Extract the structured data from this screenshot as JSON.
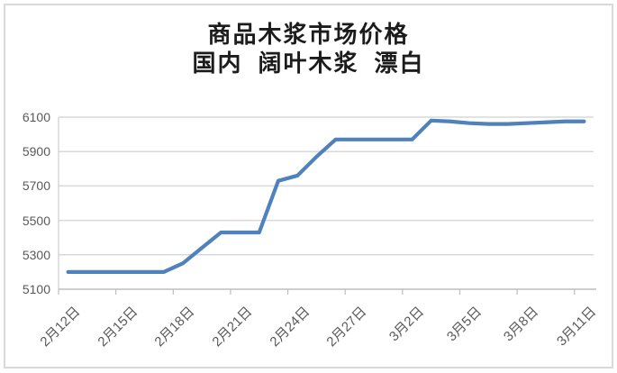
{
  "chart": {
    "title": "商品木浆市场价格",
    "subtitle": "国内  阔叶木浆  漂白"
  },
  "chart_data": {
    "type": "line",
    "title": "商品木浆市场价格",
    "subtitle": "国内 阔叶木浆 漂白",
    "x": [
      "2月12日",
      "2月13日",
      "2月14日",
      "2月15日",
      "2月16日",
      "2月17日",
      "2月18日",
      "2月19日",
      "2月20日",
      "2月21日",
      "2月22日",
      "2月23日",
      "2月24日",
      "2月25日",
      "2月26日",
      "2月27日",
      "2月28日",
      "3月1日",
      "3月2日",
      "3月3日",
      "3月4日",
      "3月5日",
      "3月6日",
      "3月7日",
      "3月8日",
      "3月9日",
      "3月10日",
      "3月11日"
    ],
    "values": [
      5200,
      5200,
      5200,
      5200,
      5200,
      5200,
      5250,
      5340,
      5430,
      5430,
      5430,
      5730,
      5760,
      5870,
      5970,
      5970,
      5970,
      5970,
      5970,
      6080,
      6075,
      6065,
      6060,
      6060,
      6065,
      6070,
      6075,
      6075
    ],
    "x_tick_labels": [
      "2月12日",
      "2月15日",
      "2月18日",
      "2月21日",
      "2月24日",
      "2月27日",
      "3月2日",
      "3月5日",
      "3月8日",
      "3月11日"
    ],
    "x_tick_step": 3,
    "y_ticks": [
      5100,
      5300,
      5500,
      5700,
      5900,
      6100
    ],
    "ylim": [
      5100,
      6100
    ],
    "grid": "horizontal",
    "legend": "none",
    "line_color": "#4f81bd",
    "gridline_color": "#d9d9d9",
    "axis_color": "#bdbdbd",
    "label_color": "#595959",
    "title_color": "#1c1c1c"
  }
}
